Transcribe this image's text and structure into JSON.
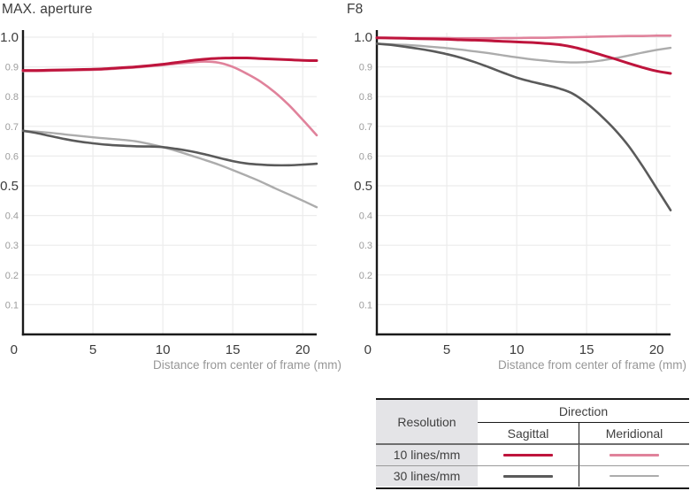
{
  "colors": {
    "red": "#be143c",
    "pink": "#e0829b",
    "dark_gray": "#5a5a5a",
    "light_gray": "#acacac",
    "gridline": "#ececec",
    "axis": "#1a1a1a",
    "tick_major": "#3c3c3c",
    "tick_minor": "#9c9c9c",
    "table_header_bg": "#e4e4e7"
  },
  "chart_data": [
    {
      "type": "line",
      "title": "MAX. aperture",
      "xlabel": "Distance from center of frame (mm)",
      "ylabel": "",
      "xlim": [
        0,
        21
      ],
      "ylim": [
        0,
        1.0
      ],
      "grid": true,
      "origin_label": "0",
      "xticks": [
        {
          "v": 0,
          "label": "0"
        },
        {
          "v": 5,
          "label": "5"
        },
        {
          "v": 10,
          "label": "10"
        },
        {
          "v": 15,
          "label": "15"
        },
        {
          "v": 20,
          "label": "20"
        }
      ],
      "yticks_major": [
        {
          "v": 1.0,
          "label": "1.0"
        },
        {
          "v": 0.5,
          "label": "0.5"
        }
      ],
      "yticks_minor": [
        {
          "v": 0.9,
          "label": "0.9"
        },
        {
          "v": 0.8,
          "label": "0.8"
        },
        {
          "v": 0.7,
          "label": "0.7"
        },
        {
          "v": 0.6,
          "label": "0.6"
        },
        {
          "v": 0.4,
          "label": "0.4"
        },
        {
          "v": 0.3,
          "label": "0.3"
        },
        {
          "v": 0.2,
          "label": "0.2"
        },
        {
          "v": 0.1,
          "label": "0.1"
        }
      ],
      "x": [
        0,
        1,
        2,
        3,
        4,
        5,
        6,
        7,
        8,
        9,
        10,
        11,
        12,
        13,
        14,
        15,
        16,
        17,
        18,
        19,
        20,
        21
      ],
      "series": [
        {
          "name": "30 lines/mm Meridional",
          "color": "#acacac",
          "width": 2.4,
          "values": [
            0.685,
            0.682,
            0.678,
            0.673,
            0.668,
            0.663,
            0.659,
            0.655,
            0.65,
            0.641,
            0.63,
            0.617,
            0.602,
            0.587,
            0.571,
            0.553,
            0.534,
            0.514,
            0.492,
            0.471,
            0.45,
            0.428
          ]
        },
        {
          "name": "30 lines/mm Sagittal",
          "color": "#5a5a5a",
          "width": 2.6,
          "values": [
            0.685,
            0.677,
            0.667,
            0.657,
            0.649,
            0.643,
            0.638,
            0.635,
            0.633,
            0.632,
            0.63,
            0.624,
            0.616,
            0.606,
            0.594,
            0.583,
            0.575,
            0.571,
            0.569,
            0.569,
            0.571,
            0.574
          ]
        },
        {
          "name": "10 lines/mm Meridional",
          "color": "#e0829b",
          "width": 2.6,
          "values": [
            0.886,
            0.886,
            0.887,
            0.888,
            0.889,
            0.89,
            0.892,
            0.895,
            0.898,
            0.902,
            0.906,
            0.911,
            0.915,
            0.918,
            0.914,
            0.9,
            0.877,
            0.85,
            0.815,
            0.772,
            0.722,
            0.67
          ]
        },
        {
          "name": "10 lines/mm Sagittal",
          "color": "#be143c",
          "width": 3,
          "values": [
            0.888,
            0.888,
            0.889,
            0.89,
            0.891,
            0.892,
            0.894,
            0.897,
            0.9,
            0.904,
            0.909,
            0.915,
            0.921,
            0.926,
            0.929,
            0.93,
            0.93,
            0.928,
            0.926,
            0.924,
            0.922,
            0.921
          ]
        }
      ]
    },
    {
      "type": "line",
      "title": "F8",
      "xlabel": "Distance from center of frame (mm)",
      "ylabel": "",
      "xlim": [
        0,
        21
      ],
      "ylim": [
        0,
        1.0
      ],
      "grid": true,
      "origin_label": "0",
      "xticks": [
        {
          "v": 0,
          "label": "0"
        },
        {
          "v": 5,
          "label": "5"
        },
        {
          "v": 10,
          "label": "10"
        },
        {
          "v": 15,
          "label": "15"
        },
        {
          "v": 20,
          "label": "20"
        }
      ],
      "yticks_major": [
        {
          "v": 1.0,
          "label": "1.0"
        },
        {
          "v": 0.5,
          "label": "0.5"
        }
      ],
      "yticks_minor": [
        {
          "v": 0.9,
          "label": "0.9"
        },
        {
          "v": 0.8,
          "label": "0.8"
        },
        {
          "v": 0.7,
          "label": "0.7"
        },
        {
          "v": 0.6,
          "label": "0.6"
        },
        {
          "v": 0.4,
          "label": "0.4"
        },
        {
          "v": 0.3,
          "label": "0.3"
        },
        {
          "v": 0.2,
          "label": "0.2"
        },
        {
          "v": 0.1,
          "label": "0.1"
        }
      ],
      "x": [
        0,
        1,
        2,
        3,
        4,
        5,
        6,
        7,
        8,
        9,
        10,
        11,
        12,
        13,
        14,
        15,
        16,
        17,
        18,
        19,
        20,
        21
      ],
      "series": [
        {
          "name": "30 lines/mm Meridional",
          "color": "#acacac",
          "width": 2.4,
          "values": [
            0.978,
            0.976,
            0.974,
            0.971,
            0.967,
            0.963,
            0.958,
            0.952,
            0.946,
            0.939,
            0.932,
            0.926,
            0.921,
            0.917,
            0.915,
            0.916,
            0.921,
            0.929,
            0.938,
            0.948,
            0.957,
            0.964
          ]
        },
        {
          "name": "30 lines/mm Sagittal",
          "color": "#5a5a5a",
          "width": 2.6,
          "values": [
            0.978,
            0.974,
            0.968,
            0.961,
            0.953,
            0.943,
            0.931,
            0.916,
            0.899,
            0.881,
            0.864,
            0.851,
            0.84,
            0.828,
            0.81,
            0.778,
            0.737,
            0.69,
            0.634,
            0.566,
            0.492,
            0.418
          ]
        },
        {
          "name": "10 lines/mm Meridional",
          "color": "#e0829b",
          "width": 2.6,
          "values": [
            0.998,
            0.998,
            0.997,
            0.997,
            0.997,
            0.997,
            0.996,
            0.996,
            0.996,
            0.997,
            0.997,
            0.998,
            0.998,
            0.999,
            1.0,
            1.001,
            1.002,
            1.003,
            1.004,
            1.004,
            1.005,
            1.005
          ]
        },
        {
          "name": "10 lines/mm Sagittal",
          "color": "#be143c",
          "width": 3,
          "values": [
            0.998,
            0.997,
            0.996,
            0.995,
            0.994,
            0.993,
            0.991,
            0.99,
            0.988,
            0.986,
            0.984,
            0.982,
            0.979,
            0.975,
            0.967,
            0.955,
            0.941,
            0.927,
            0.912,
            0.898,
            0.886,
            0.878
          ]
        }
      ]
    }
  ],
  "legend_table": {
    "resolution_header": "Resolution",
    "direction_header": "Direction",
    "columns": [
      "Sagittal",
      "Meridional"
    ],
    "rows": [
      {
        "label": "10 lines/mm",
        "sagittal_color": "#be143c",
        "sagittal_thickness": 3,
        "meridional_color": "#e0829b",
        "meridional_thickness": 2.5
      },
      {
        "label": "30 lines/mm",
        "sagittal_color": "#5a5a5a",
        "sagittal_thickness": 2.5,
        "meridional_color": "#acacac",
        "meridional_thickness": 2
      }
    ]
  }
}
